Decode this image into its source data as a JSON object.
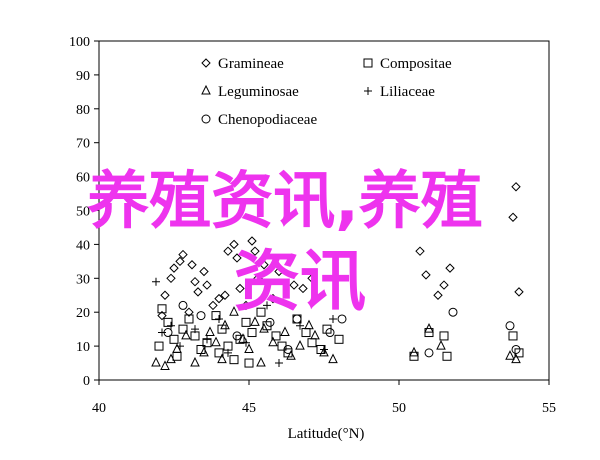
{
  "chart_data": {
    "type": "scatter",
    "xlabel": "Latitude(°N)",
    "ylabel": "",
    "xlim": [
      40,
      55
    ],
    "ylim": [
      0,
      100
    ],
    "xticks": [
      40,
      45,
      50,
      55
    ],
    "yticks": [
      0,
      10,
      20,
      30,
      40,
      50,
      60,
      70,
      80,
      90,
      100
    ],
    "grid": false,
    "legend_position": "top-center",
    "series": [
      {
        "name": "Gramineae",
        "marker": "diamond",
        "points": [
          [
            42.1,
            19
          ],
          [
            42.2,
            25
          ],
          [
            42.4,
            30
          ],
          [
            42.5,
            33
          ],
          [
            42.7,
            35
          ],
          [
            42.8,
            37
          ],
          [
            43.1,
            34
          ],
          [
            43.2,
            29
          ],
          [
            43.3,
            26
          ],
          [
            43.0,
            20
          ],
          [
            43.5,
            32
          ],
          [
            43.6,
            28
          ],
          [
            43.8,
            22
          ],
          [
            44.0,
            24
          ],
          [
            44.2,
            25
          ],
          [
            44.3,
            38
          ],
          [
            44.5,
            40
          ],
          [
            44.6,
            36
          ],
          [
            45.1,
            41
          ],
          [
            45.2,
            38
          ],
          [
            45.5,
            34
          ],
          [
            45.3,
            30
          ],
          [
            46.0,
            32
          ],
          [
            46.5,
            28
          ],
          [
            44.7,
            27
          ],
          [
            44.9,
            22
          ],
          [
            45.8,
            24
          ],
          [
            47.1,
            30
          ],
          [
            46.8,
            27
          ],
          [
            50.7,
            38
          ],
          [
            50.9,
            31
          ],
          [
            51.3,
            25
          ],
          [
            51.5,
            28
          ],
          [
            51.7,
            33
          ],
          [
            53.8,
            48
          ],
          [
            53.9,
            57
          ],
          [
            54.0,
            26
          ]
        ]
      },
      {
        "name": "Compositae",
        "marker": "square",
        "points": [
          [
            42.0,
            10
          ],
          [
            42.1,
            21
          ],
          [
            42.3,
            17
          ],
          [
            42.5,
            12
          ],
          [
            42.6,
            7
          ],
          [
            42.8,
            15
          ],
          [
            43.0,
            18
          ],
          [
            43.2,
            13
          ],
          [
            43.4,
            9
          ],
          [
            43.6,
            11
          ],
          [
            43.9,
            19
          ],
          [
            44.1,
            15
          ],
          [
            44.3,
            10
          ],
          [
            44.5,
            6
          ],
          [
            44.7,
            12
          ],
          [
            44.9,
            17
          ],
          [
            45.1,
            14
          ],
          [
            45.4,
            20
          ],
          [
            45.6,
            16
          ],
          [
            45.9,
            13
          ],
          [
            46.1,
            10
          ],
          [
            46.3,
            8
          ],
          [
            46.6,
            18
          ],
          [
            46.9,
            14
          ],
          [
            47.1,
            11
          ],
          [
            47.4,
            9
          ],
          [
            47.6,
            15
          ],
          [
            48.0,
            12
          ],
          [
            44.0,
            8
          ],
          [
            45.0,
            5
          ],
          [
            50.5,
            7
          ],
          [
            51.0,
            14
          ],
          [
            51.5,
            13
          ],
          [
            51.6,
            7
          ],
          [
            53.8,
            13
          ],
          [
            54.0,
            8
          ]
        ]
      },
      {
        "name": "Leguminosae",
        "marker": "triangle",
        "points": [
          [
            41.9,
            5
          ],
          [
            42.2,
            4
          ],
          [
            42.4,
            6
          ],
          [
            42.6,
            9
          ],
          [
            42.9,
            13
          ],
          [
            43.2,
            5
          ],
          [
            43.5,
            8
          ],
          [
            43.7,
            14
          ],
          [
            43.9,
            11
          ],
          [
            44.2,
            16
          ],
          [
            44.5,
            20
          ],
          [
            44.8,
            12
          ],
          [
            45.0,
            9
          ],
          [
            45.2,
            17
          ],
          [
            45.5,
            15
          ],
          [
            45.8,
            11
          ],
          [
            46.2,
            14
          ],
          [
            46.4,
            7
          ],
          [
            46.7,
            10
          ],
          [
            47.0,
            16
          ],
          [
            47.2,
            13
          ],
          [
            47.5,
            8
          ],
          [
            47.8,
            6
          ],
          [
            44.1,
            6
          ],
          [
            45.4,
            5
          ],
          [
            50.5,
            8
          ],
          [
            51.0,
            15
          ],
          [
            51.4,
            10
          ],
          [
            53.7,
            7
          ],
          [
            53.9,
            6
          ]
        ]
      },
      {
        "name": "Liliaceae",
        "marker": "plus",
        "points": [
          [
            41.9,
            29
          ],
          [
            42.1,
            14
          ],
          [
            42.4,
            16
          ],
          [
            42.7,
            10
          ],
          [
            43.2,
            15
          ],
          [
            43.6,
            12
          ],
          [
            44.0,
            18
          ],
          [
            44.3,
            8
          ],
          [
            44.9,
            11
          ],
          [
            45.6,
            22
          ],
          [
            46.0,
            5
          ],
          [
            46.7,
            16
          ],
          [
            47.5,
            9
          ],
          [
            47.8,
            18
          ]
        ]
      },
      {
        "name": "Chenopodiaceae",
        "marker": "circle",
        "points": [
          [
            42.3,
            14
          ],
          [
            42.8,
            22
          ],
          [
            43.4,
            19
          ],
          [
            44.6,
            13
          ],
          [
            45.7,
            17
          ],
          [
            46.3,
            9
          ],
          [
            46.6,
            18
          ],
          [
            47.7,
            14
          ],
          [
            48.1,
            18
          ],
          [
            51.0,
            8
          ],
          [
            51.8,
            20
          ],
          [
            53.7,
            16
          ],
          [
            53.9,
            9
          ]
        ]
      }
    ]
  },
  "overlay": {
    "line1": "养殖资讯,养殖",
    "line2": "资讯"
  }
}
